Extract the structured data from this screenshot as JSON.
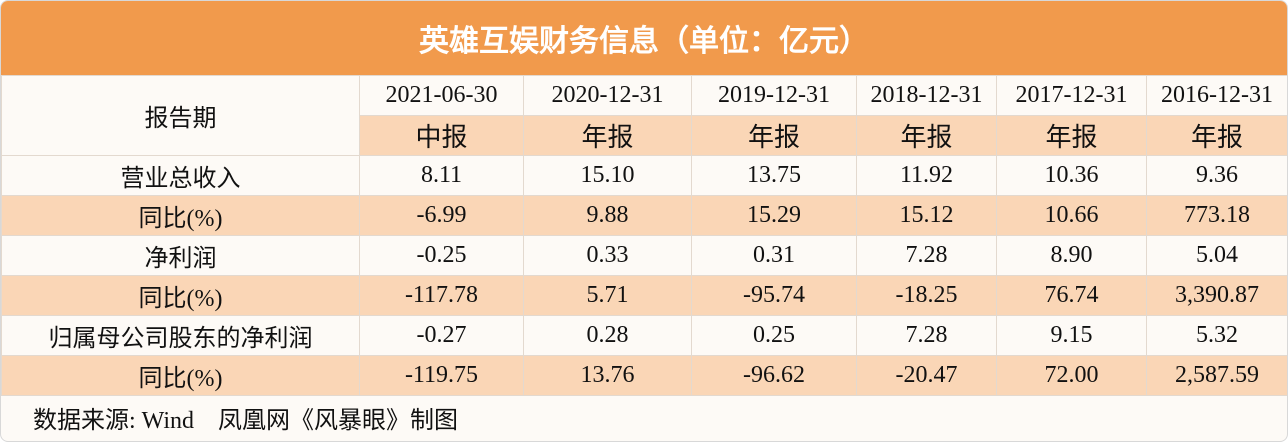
{
  "header": {
    "title": "英雄互娱财务信息（单位：亿元）"
  },
  "table": {
    "period_label": "报告期",
    "columns": [
      {
        "date": "2021-06-30",
        "kind": "中报"
      },
      {
        "date": "2020-12-31",
        "kind": "年报"
      },
      {
        "date": "2019-12-31",
        "kind": "年报"
      },
      {
        "date": "2018-12-31",
        "kind": "年报"
      },
      {
        "date": "2017-12-31",
        "kind": "年报"
      },
      {
        "date": "2016-12-31",
        "kind": "年报"
      }
    ],
    "rows": [
      {
        "label": "营业总收入",
        "values": [
          "8.11",
          "15.10",
          "13.75",
          "11.92",
          "10.36",
          "9.36"
        ]
      },
      {
        "label": "同比(%)",
        "values": [
          "-6.99",
          "9.88",
          "15.29",
          "15.12",
          "10.66",
          "773.18"
        ]
      },
      {
        "label": "净利润",
        "values": [
          "-0.25",
          "0.33",
          "0.31",
          "7.28",
          "8.90",
          "5.04"
        ]
      },
      {
        "label": "同比(%)",
        "values": [
          "-117.78",
          "5.71",
          "-95.74",
          "-18.25",
          "76.74",
          "3,390.87"
        ]
      },
      {
        "label": "归属母公司股东的净利润",
        "values": [
          "-0.27",
          "0.28",
          "0.25",
          "7.28",
          "9.15",
          "5.32"
        ]
      },
      {
        "label": "同比(%)",
        "values": [
          "-119.75",
          "13.76",
          "-96.62",
          "-20.47",
          "72.00",
          "2,587.59"
        ]
      }
    ]
  },
  "footer": {
    "source": "数据来源: Wind　凤凰网《风暴眼》制图"
  }
}
